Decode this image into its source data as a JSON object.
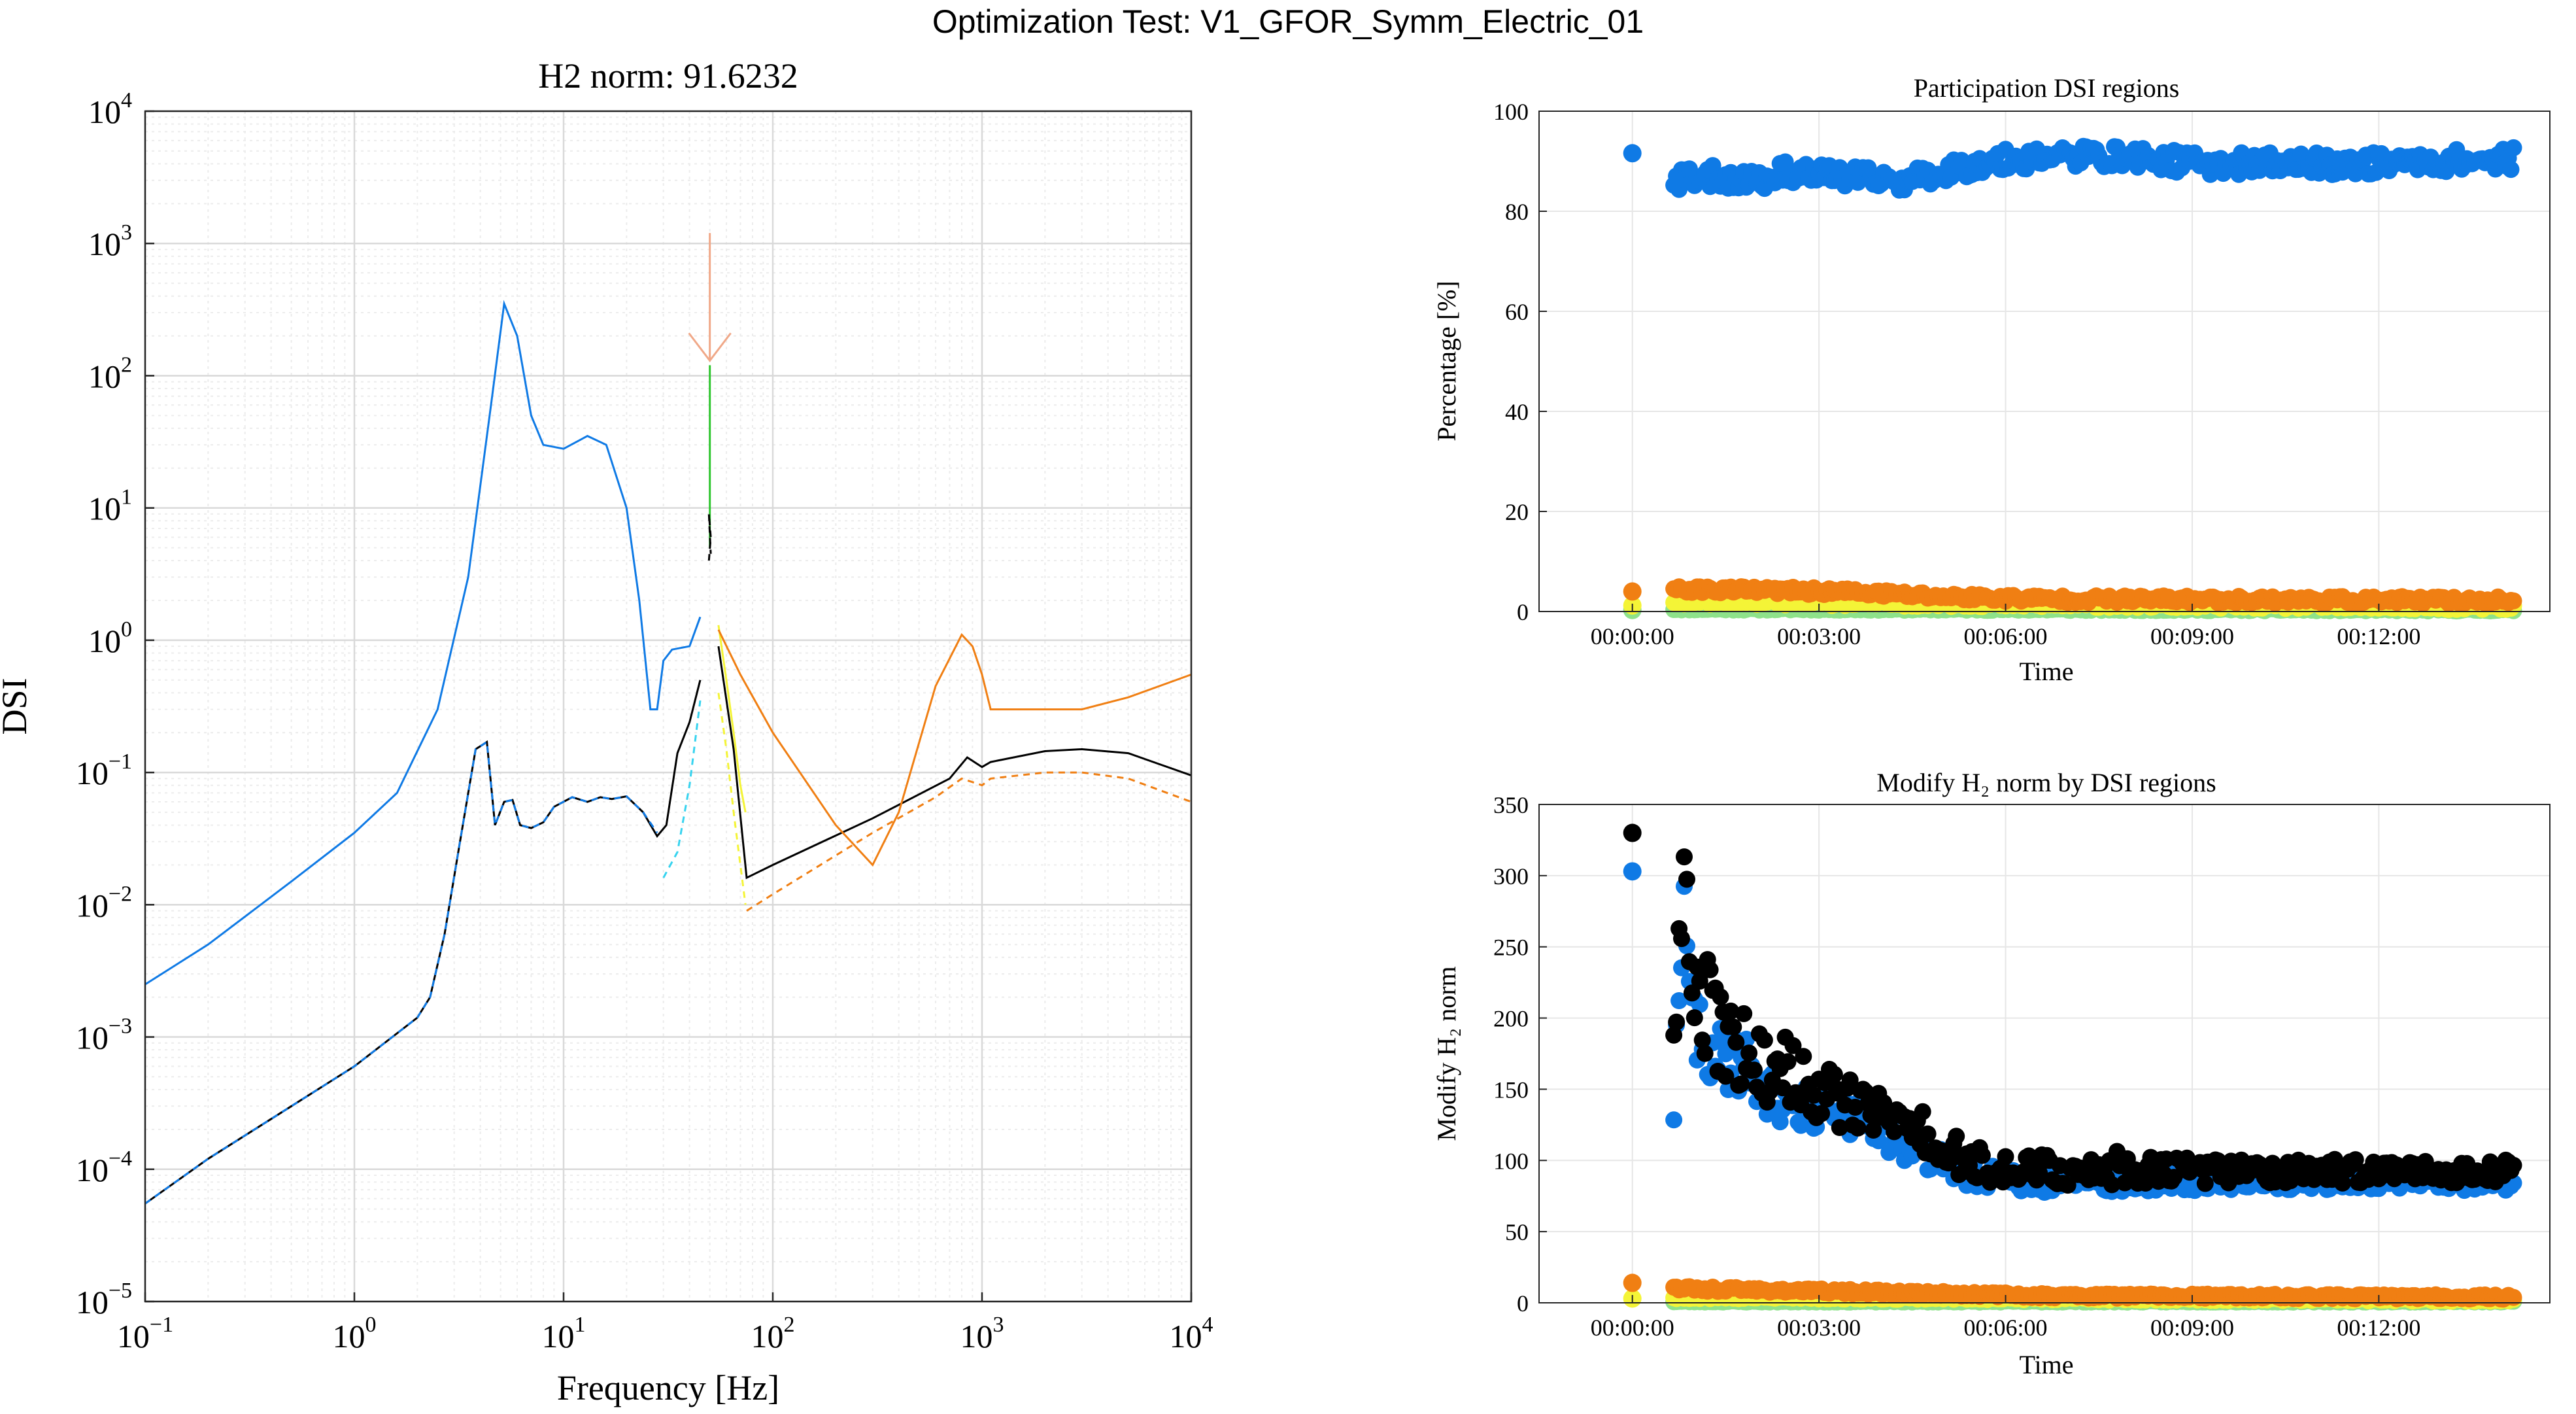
{
  "figure": {
    "suptitle": "Optimization Test: V1_GFOR_Symm_Electric_01"
  },
  "colors": {
    "blue": "#0f7ae5",
    "black": "#000000",
    "cyan": "#36d3ef",
    "yellow": "#f4f437",
    "orange": "#f07f13",
    "green": "#2ec52e",
    "light_green": "#8ee28a",
    "arrow": "#f0a888",
    "grid": "#d9d9d9",
    "minor_grid": "#ececec"
  },
  "chart_data": [
    {
      "id": "dsi",
      "type": "line",
      "title": "H2 norm: 91.6232",
      "xlabel": "Frequency [Hz]",
      "ylabel": "DSI",
      "xscale": "log",
      "yscale": "log",
      "xlim": [
        0.1,
        10000
      ],
      "ylim": [
        1e-05,
        10000
      ],
      "grid": true,
      "minor_grid": true,
      "x_ticks": [
        {
          "value": 0.1,
          "base": "10",
          "exp": "−1"
        },
        {
          "value": 1,
          "base": "10",
          "exp": "0"
        },
        {
          "value": 10,
          "base": "10",
          "exp": "1"
        },
        {
          "value": 100,
          "base": "10",
          "exp": "2"
        },
        {
          "value": 1000,
          "base": "10",
          "exp": "3"
        },
        {
          "value": 10000,
          "base": "10",
          "exp": "4"
        }
      ],
      "y_ticks": [
        {
          "value": 1e-05,
          "base": "10",
          "exp": "−5"
        },
        {
          "value": 0.0001,
          "base": "10",
          "exp": "−4"
        },
        {
          "value": 0.001,
          "base": "10",
          "exp": "−3"
        },
        {
          "value": 0.01,
          "base": "10",
          "exp": "−2"
        },
        {
          "value": 0.1,
          "base": "10",
          "exp": "−1"
        },
        {
          "value": 1,
          "base": "10",
          "exp": "0"
        },
        {
          "value": 10,
          "base": "10",
          "exp": "1"
        },
        {
          "value": 100,
          "base": "10",
          "exp": "2"
        },
        {
          "value": 1000,
          "base": "10",
          "exp": "3"
        },
        {
          "value": 10000,
          "base": "10",
          "exp": "4"
        }
      ],
      "series": [
        {
          "color": "blue",
          "style": "solid",
          "x": [
            0.1,
            0.2,
            0.5,
            1,
            1.6,
            2.5,
            3.5,
            4.5,
            5.2,
            6,
            7,
            8,
            10,
            13,
            16,
            20,
            23,
            26,
            28,
            30,
            33,
            40,
            45
          ],
          "y": [
            0.0025,
            0.005,
            0.015,
            0.035,
            0.07,
            0.3,
            3,
            60,
            350,
            200,
            50,
            30,
            28,
            35,
            30,
            10,
            2,
            0.3,
            0.3,
            0.7,
            0.85,
            0.9,
            1.5
          ]
        },
        {
          "color": "black",
          "style": "solid",
          "x": [
            0.1,
            0.2,
            0.5,
            1,
            2,
            2.3,
            2.7,
            3.2,
            3.8,
            4.3,
            4.7,
            5.2,
            5.7,
            6.2,
            7,
            8,
            9,
            11,
            13,
            15,
            17,
            20,
            24,
            28,
            31,
            35,
            40,
            45
          ],
          "y": [
            5.5e-05,
            0.00012,
            0.0003,
            0.0006,
            0.0014,
            0.002,
            0.006,
            0.03,
            0.15,
            0.17,
            0.04,
            0.06,
            0.062,
            0.04,
            0.038,
            0.042,
            0.055,
            0.065,
            0.06,
            0.065,
            0.063,
            0.066,
            0.05,
            0.033,
            0.04,
            0.14,
            0.24,
            0.5
          ]
        },
        {
          "color": "blue",
          "style": "dashed",
          "x": [
            0.1,
            0.2,
            0.5,
            1,
            2,
            2.3,
            2.7,
            3.2,
            3.8,
            4.3,
            4.7,
            5.2,
            5.7,
            6.2,
            7,
            8,
            9,
            11,
            13,
            15,
            17,
            20,
            24,
            28
          ],
          "y": [
            5.5e-05,
            0.00012,
            0.0003,
            0.0006,
            0.0014,
            0.002,
            0.006,
            0.03,
            0.15,
            0.17,
            0.04,
            0.06,
            0.062,
            0.04,
            0.038,
            0.042,
            0.055,
            0.065,
            0.06,
            0.065,
            0.063,
            0.066,
            0.05,
            0.035
          ]
        },
        {
          "color": "cyan",
          "style": "dashed",
          "x": [
            30,
            35,
            40,
            45
          ],
          "y": [
            0.016,
            0.025,
            0.08,
            0.35
          ]
        },
        {
          "color": "green",
          "style": "solid",
          "x": [
            50,
            50,
            50,
            50
          ],
          "y": [
            5,
            15,
            50,
            120
          ]
        },
        {
          "color": "black",
          "style": "dashed",
          "x": [
            49.5,
            50.5,
            49.5,
            50.5
          ],
          "y": [
            4,
            6,
            9,
            4.5
          ]
        },
        {
          "color": "yellow",
          "style": "solid",
          "x": [
            55,
            60,
            65,
            70,
            74
          ],
          "y": [
            1.3,
            0.5,
            0.2,
            0.08,
            0.05
          ]
        },
        {
          "color": "yellow",
          "style": "dashed",
          "x": [
            55,
            60,
            65,
            70,
            74
          ],
          "y": [
            0.4,
            0.15,
            0.05,
            0.02,
            0.01
          ]
        },
        {
          "color": "black",
          "style": "solid",
          "x": [
            55,
            65,
            75,
            100,
            300,
            700,
            850,
            1000,
            1100,
            2000,
            3000,
            5000,
            10000
          ],
          "y": [
            0.9,
            0.15,
            0.016,
            0.02,
            0.045,
            0.09,
            0.13,
            0.11,
            0.12,
            0.145,
            0.15,
            0.14,
            0.095
          ]
        },
        {
          "color": "orange",
          "style": "dashed",
          "x": [
            75,
            100,
            300,
            600,
            800,
            1000,
            1100,
            2000,
            3000,
            5000,
            10000
          ],
          "y": [
            0.009,
            0.012,
            0.035,
            0.065,
            0.09,
            0.08,
            0.09,
            0.1,
            0.1,
            0.09,
            0.06
          ]
        },
        {
          "color": "orange",
          "style": "solid",
          "x": [
            55,
            70,
            100,
            200,
            300,
            400,
            600,
            800,
            900,
            1000,
            1100,
            2000,
            3000,
            5000,
            10000
          ],
          "y": [
            1.2,
            0.55,
            0.2,
            0.04,
            0.02,
            0.05,
            0.45,
            1.1,
            0.9,
            0.55,
            0.3,
            0.3,
            0.3,
            0.37,
            0.55
          ]
        }
      ],
      "arrow": {
        "x": 50,
        "y_from": 1200,
        "y_to": 130
      }
    },
    {
      "id": "participation",
      "type": "scatter",
      "title": "Participation DSI regions",
      "xlabel": "Time",
      "ylabel": "Percentage [%]",
      "xlim_seconds": [
        -90,
        885
      ],
      "ylim": [
        0,
        100
      ],
      "grid": true,
      "x_ticks": [
        {
          "value": 0,
          "label": "00:00:00"
        },
        {
          "value": 180,
          "label": "00:03:00"
        },
        {
          "value": 360,
          "label": "00:06:00"
        },
        {
          "value": 540,
          "label": "00:09:00"
        },
        {
          "value": 720,
          "label": "00:12:00"
        }
      ],
      "y_ticks": [
        0,
        20,
        40,
        60,
        80,
        100
      ],
      "initial_point": {
        "t": 0,
        "blue": 91.6,
        "orange": 4.0,
        "yellow": 1.2,
        "light_green": 0.3
      },
      "series": [
        {
          "color": "blue",
          "t_start": 40,
          "t_end": 850,
          "anchors": [
            [
              40,
              86
            ],
            [
              80,
              87
            ],
            [
              120,
              86
            ],
            [
              150,
              88
            ],
            [
              200,
              87
            ],
            [
              260,
              86
            ],
            [
              300,
              88
            ],
            [
              350,
              90
            ],
            [
              400,
              91
            ],
            [
              450,
              91
            ],
            [
              500,
              90.5
            ],
            [
              550,
              89.5
            ],
            [
              600,
              89.5
            ],
            [
              700,
              89.5
            ],
            [
              850,
              90.5
            ]
          ],
          "jitter": 2.2
        },
        {
          "color": "orange",
          "t_start": 40,
          "t_end": 850,
          "anchors": [
            [
              40,
              4.5
            ],
            [
              200,
              4.0
            ],
            [
              300,
              3.0
            ],
            [
              400,
              2.5
            ],
            [
              850,
              2.2
            ]
          ],
          "jitter": 0.7
        },
        {
          "color": "yellow",
          "t_start": 40,
          "t_end": 850,
          "anchors": [
            [
              40,
              2.0
            ],
            [
              300,
              1.5
            ],
            [
              850,
              0.8
            ]
          ],
          "jitter": 0.5
        },
        {
          "color": "light_green",
          "t_start": 40,
          "t_end": 850,
          "anchors": [
            [
              40,
              0.5
            ],
            [
              850,
              0.3
            ]
          ],
          "jitter": 0.2
        }
      ]
    },
    {
      "id": "h2norm",
      "type": "scatter",
      "title": "Modify H₂ norm by DSI regions",
      "xlabel": "Time",
      "ylabel": "Modify H₂ norm",
      "xlim_seconds": [
        -90,
        885
      ],
      "ylim": [
        0,
        350
      ],
      "grid": true,
      "x_ticks": [
        {
          "value": 0,
          "label": "00:00:00"
        },
        {
          "value": 180,
          "label": "00:03:00"
        },
        {
          "value": 360,
          "label": "00:06:00"
        },
        {
          "value": 540,
          "label": "00:09:00"
        },
        {
          "value": 720,
          "label": "00:12:00"
        }
      ],
      "y_ticks": [
        0,
        50,
        100,
        150,
        200,
        250,
        300,
        350
      ],
      "initial_point": {
        "t": 0,
        "black": 330,
        "blue": 303,
        "orange": 14,
        "yellow": 3
      },
      "series": [
        {
          "color": "black",
          "t_start": 40,
          "t_end": 850,
          "anchors": [
            [
              40,
              180
            ],
            [
              50,
              320
            ],
            [
              60,
              230
            ],
            [
              80,
              190
            ],
            [
              120,
              170
            ],
            [
              160,
              160
            ],
            [
              200,
              140
            ],
            [
              240,
              130
            ],
            [
              280,
              120
            ],
            [
              320,
              100
            ],
            [
              360,
              95
            ],
            [
              420,
              93
            ],
            [
              850,
              92
            ]
          ],
          "jitter_decay": 35,
          "jitter": 8
        },
        {
          "color": "blue",
          "t_start": 40,
          "t_end": 850,
          "anchors": [
            [
              40,
              160
            ],
            [
              50,
              290
            ],
            [
              60,
              200
            ],
            [
              80,
              175
            ],
            [
              120,
              150
            ],
            [
              160,
              140
            ],
            [
              200,
              135
            ],
            [
              240,
              120
            ],
            [
              280,
              105
            ],
            [
              320,
              92
            ],
            [
              360,
              86
            ],
            [
              420,
              85
            ],
            [
              850,
              84
            ]
          ],
          "jitter_decay": 30,
          "jitter": 5
        },
        {
          "color": "orange",
          "t_start": 40,
          "t_end": 850,
          "anchors": [
            [
              40,
              10
            ],
            [
              200,
              8
            ],
            [
              400,
              5
            ],
            [
              850,
              4
            ]
          ],
          "jitter": 1.5
        },
        {
          "color": "yellow",
          "t_start": 40,
          "t_end": 850,
          "anchors": [
            [
              40,
              4
            ],
            [
              850,
              2
            ]
          ],
          "jitter": 1
        },
        {
          "color": "light_green",
          "t_start": 40,
          "t_end": 850,
          "anchors": [
            [
              40,
              1
            ],
            [
              850,
              1
            ]
          ],
          "jitter": 0.5
        }
      ]
    }
  ]
}
